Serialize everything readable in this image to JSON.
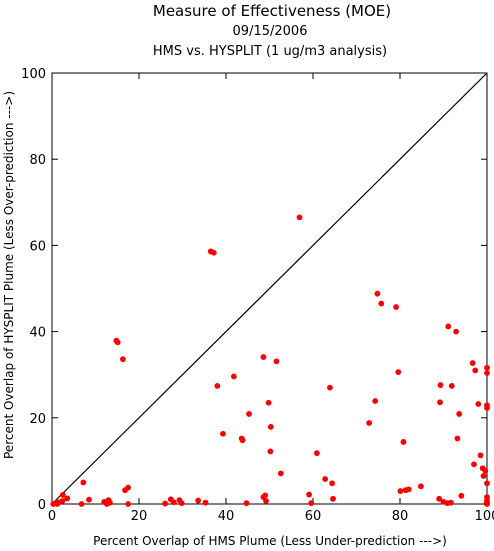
{
  "chart_data": {
    "type": "scatter",
    "title": "Measure of Effectiveness (MOE)",
    "subtitle": "09/15/2006",
    "subtitle2": "HMS vs. HYSPLIT  (1 ug/m3 analysis)",
    "xlabel": "Percent Overlap of HMS Plume (Less Under-prediction --->)",
    "ylabel": "Percent Overlap of HYSPLIT Plume (Less Over-prediction --->)",
    "xlim": [
      0,
      100
    ],
    "ylim": [
      0,
      100
    ],
    "xticks": [
      "0",
      "20",
      "40",
      "60",
      "80",
      "100"
    ],
    "yticks": [
      "0",
      "20",
      "40",
      "60",
      "80",
      "100"
    ],
    "grid": false,
    "reference_line": "y = x",
    "colors": {
      "points": "#ff0000",
      "axes": "#000000",
      "line": "#000000"
    },
    "series": [
      {
        "points": [
          [
            0.3,
            0
          ],
          [
            0.8,
            0.2
          ],
          [
            1.2,
            0
          ],
          [
            1.6,
            0.4
          ],
          [
            2.4,
            0.7
          ],
          [
            3.5,
            1.3
          ],
          [
            2.5,
            2.1
          ],
          [
            7.2,
            5.0
          ],
          [
            8.5,
            1.0
          ],
          [
            6.8,
            0
          ],
          [
            12.0,
            0.5
          ],
          [
            12.6,
            0
          ],
          [
            13.0,
            0.9
          ],
          [
            13.3,
            0.3
          ],
          [
            17.5,
            0
          ],
          [
            14.8,
            37.9
          ],
          [
            15.1,
            37.5
          ],
          [
            16.3,
            33.6
          ],
          [
            16.8,
            3.2
          ],
          [
            17.5,
            3.8
          ],
          [
            26.0,
            0.1
          ],
          [
            27.3,
            1.1
          ],
          [
            28.0,
            0.4
          ],
          [
            29.8,
            0.2
          ],
          [
            29.3,
            0.9
          ],
          [
            33.6,
            0.8
          ],
          [
            35.3,
            0.3
          ],
          [
            36.5,
            58.6
          ],
          [
            37.2,
            58.3
          ],
          [
            38.0,
            27.4
          ],
          [
            39.3,
            16.3
          ],
          [
            41.8,
            29.6
          ],
          [
            43.6,
            15.2
          ],
          [
            43.8,
            14.8
          ],
          [
            44.7,
            0.2
          ],
          [
            45.3,
            20.9
          ],
          [
            48.6,
            34.1
          ],
          [
            48.6,
            1.6
          ],
          [
            49.0,
            2.0
          ],
          [
            49.2,
            0.7
          ],
          [
            49.8,
            23.5
          ],
          [
            50.3,
            17.9
          ],
          [
            50.2,
            12.2
          ],
          [
            51.6,
            33.1
          ],
          [
            52.6,
            7.1
          ],
          [
            56.9,
            66.5
          ],
          [
            59.1,
            2.2
          ],
          [
            59.6,
            0.2
          ],
          [
            60.9,
            11.8
          ],
          [
            62.8,
            5.8
          ],
          [
            63.9,
            27.0
          ],
          [
            64.4,
            4.8
          ],
          [
            64.6,
            1.2
          ],
          [
            72.9,
            18.8
          ],
          [
            74.3,
            23.9
          ],
          [
            74.8,
            48.8
          ],
          [
            75.7,
            46.5
          ],
          [
            79.1,
            45.7
          ],
          [
            79.6,
            30.6
          ],
          [
            80.1,
            3.0
          ],
          [
            80.8,
            14.4
          ],
          [
            81.3,
            3.2
          ],
          [
            82.0,
            3.4
          ],
          [
            84.8,
            4.1
          ],
          [
            89.0,
            1.2
          ],
          [
            89.3,
            27.6
          ],
          [
            89.2,
            23.6
          ],
          [
            90.0,
            0.5
          ],
          [
            90.9,
            0.2
          ],
          [
            91.1,
            41.2
          ],
          [
            91.7,
            0.3
          ],
          [
            91.9,
            27.4
          ],
          [
            92.9,
            40.0
          ],
          [
            93.2,
            15.2
          ],
          [
            93.6,
            20.9
          ],
          [
            94.1,
            1.9
          ],
          [
            96.7,
            32.7
          ],
          [
            97.3,
            31.0
          ],
          [
            97.0,
            9.2
          ],
          [
            98.0,
            23.2
          ],
          [
            98.5,
            11.3
          ],
          [
            99.0,
            8.3
          ],
          [
            99.2,
            6.5
          ],
          [
            99.6,
            7.7
          ],
          [
            99.9,
            0.1
          ],
          [
            100,
            31.6
          ],
          [
            100,
            30.4
          ],
          [
            100,
            22.9
          ],
          [
            100,
            22.3
          ],
          [
            100,
            4.8
          ],
          [
            100,
            1.6
          ],
          [
            100,
            0.8
          ],
          [
            100,
            0.3
          ],
          [
            100,
            0
          ]
        ]
      }
    ]
  }
}
